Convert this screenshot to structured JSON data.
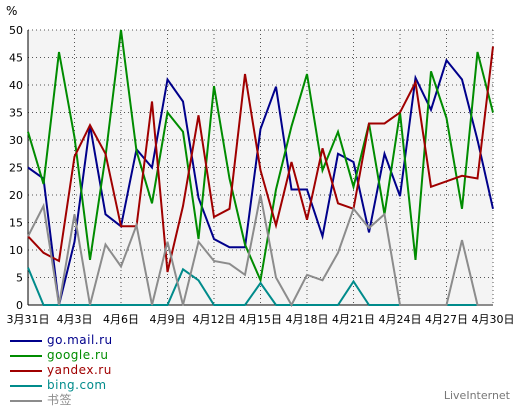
{
  "chart_data": {
    "type": "line",
    "y_unit": "%",
    "ylim": [
      0,
      50
    ],
    "y_ticks": [
      0,
      5,
      10,
      15,
      20,
      25,
      30,
      35,
      40,
      45,
      50
    ],
    "grid": true,
    "legend_position": "bottom-left",
    "x_tick_labels": [
      "3月31日",
      "4月3日",
      "4月6日",
      "4月9日",
      "4月12日",
      "4月15日",
      "4月18日",
      "4月21日",
      "4月24日",
      "4月27日",
      "4月30日"
    ],
    "x": [
      "3月31日",
      "4月1日",
      "4月2日",
      "4月3日",
      "4月4日",
      "4月5日",
      "4月6日",
      "4月7日",
      "4月8日",
      "4月9日",
      "4月10日",
      "4月11日",
      "4月12日",
      "4月13日",
      "4月14日",
      "4月15日",
      "4月16日",
      "4月17日",
      "4月18日",
      "4月19日",
      "4月20日",
      "4月21日",
      "4月22日",
      "4月23日",
      "4月24日",
      "4月25日",
      "4月26日",
      "4月27日",
      "4月28日",
      "4月29日",
      "4月30日"
    ],
    "series": [
      {
        "name": "go.mail.ru",
        "color": "#00008b",
        "values": [
          25.0,
          23.0,
          0.0,
          11.5,
          32.7,
          16.5,
          14.3,
          28.3,
          25.0,
          41.0,
          37.0,
          19.5,
          12.0,
          10.5,
          10.5,
          32.0,
          39.7,
          21.0,
          21.0,
          12.5,
          27.5,
          26.0,
          13.2,
          27.5,
          19.8,
          41.3,
          35.5,
          44.5,
          41.0,
          30.0,
          17.5
        ]
      },
      {
        "name": "google.ru",
        "color": "#008c00",
        "values": [
          31.5,
          22.0,
          46.0,
          30.5,
          8.2,
          27.0,
          50.0,
          28.0,
          18.5,
          35.0,
          31.5,
          12.0,
          39.8,
          23.0,
          11.0,
          4.5,
          21.0,
          32.5,
          42.0,
          24.5,
          31.5,
          21.5,
          33.0,
          16.5,
          35.0,
          8.2,
          42.5,
          34.0,
          17.5,
          46.0,
          35.0
        ]
      },
      {
        "name": "yandex.ru",
        "color": "#a00000",
        "values": [
          12.5,
          9.5,
          8.0,
          27.0,
          32.7,
          27.5,
          14.3,
          14.3,
          37.0,
          6.0,
          18.0,
          34.5,
          16.0,
          17.5,
          42.0,
          24.5,
          14.5,
          26.0,
          15.5,
          28.5,
          18.5,
          17.5,
          33.0,
          33.0,
          35.0,
          40.5,
          21.5,
          22.5,
          23.5,
          23.0,
          47.0
        ]
      },
      {
        "name": "bing.com",
        "color": "#008b8b",
        "values": [
          6.8,
          0.0,
          0.0,
          0.0,
          0.0,
          0.0,
          0.0,
          0.0,
          0.0,
          0.0,
          6.5,
          4.5,
          0.0,
          0.0,
          0.0,
          4.0,
          0.0,
          0.0,
          0.0,
          0.0,
          0.0,
          4.3,
          0.0,
          0.0,
          0.0,
          0.0,
          0.0,
          0.0,
          0.0,
          0.0,
          0.0
        ]
      },
      {
        "name": "书签",
        "color": "#8c8c8c",
        "values": [
          12.5,
          18.0,
          0.0,
          16.5,
          0.0,
          11.0,
          7.0,
          14.5,
          0.0,
          11.5,
          0.0,
          11.5,
          8.0,
          7.5,
          5.5,
          20.0,
          5.0,
          0.0,
          5.5,
          4.5,
          9.5,
          17.5,
          14.0,
          16.5,
          0.0,
          0.0,
          0.0,
          0.0,
          11.8,
          0.0,
          0.0
        ]
      }
    ]
  },
  "watermark": "LiveInternet"
}
